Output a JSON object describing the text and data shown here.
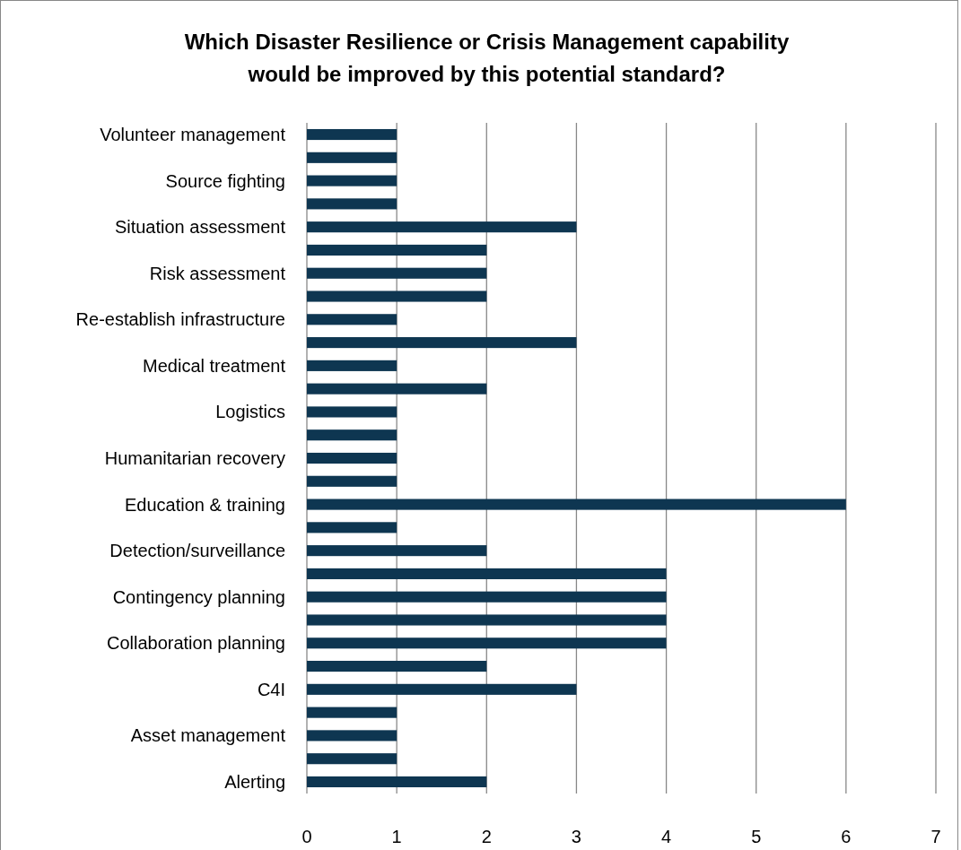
{
  "chart_data": {
    "type": "bar",
    "orientation": "horizontal",
    "title": "Which Disaster Resilience or Crisis Management capability\nwould be improved by this potential standard?",
    "categories": [
      "Volunteer management",
      null,
      "Source fighting",
      null,
      "Situation assessment",
      null,
      "Risk assessment",
      null,
      "Re-establish infrastructure",
      null,
      "Medical treatment",
      null,
      "Logistics",
      null,
      "Humanitarian recovery",
      null,
      "Education & training",
      null,
      "Detection/surveillance",
      null,
      "Contingency planning",
      null,
      "Collaboration planning",
      null,
      "C4I",
      null,
      "Asset management",
      null,
      "Alerting"
    ],
    "values": [
      1,
      1,
      1,
      1,
      3,
      2,
      2,
      2,
      1,
      3,
      1,
      2,
      1,
      1,
      1,
      1,
      6,
      1,
      2,
      4,
      4,
      4,
      4,
      2,
      3,
      1,
      1,
      1,
      2
    ],
    "color": "#0e3651",
    "xlim": [
      0,
      7
    ],
    "xticks": [
      0,
      1,
      2,
      3,
      4,
      5,
      6,
      7
    ],
    "grid": "x"
  }
}
